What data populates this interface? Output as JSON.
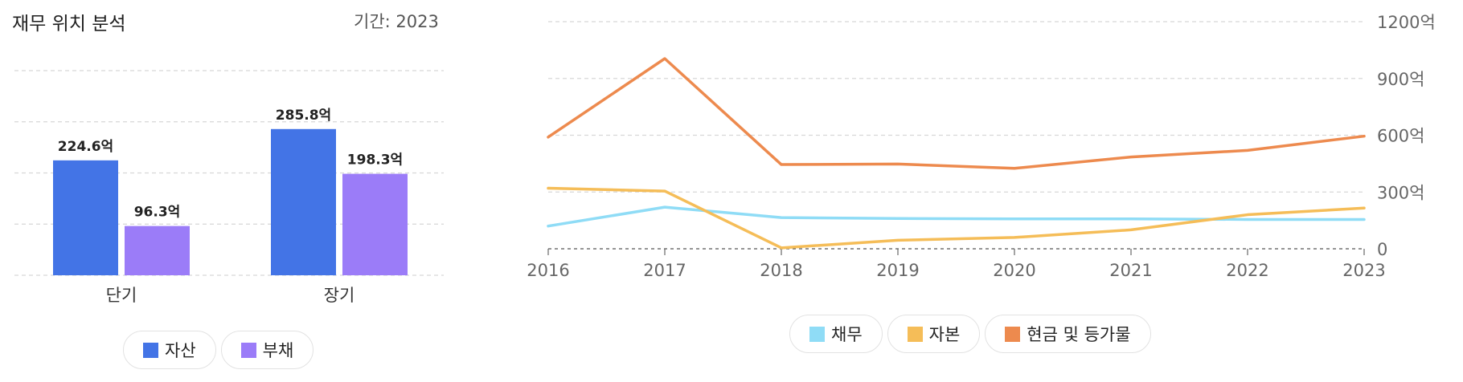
{
  "left_panel": {
    "title": "재무 위치 분석",
    "period_label": "기간: 2023"
  },
  "chart_data": [
    {
      "type": "bar",
      "categories": [
        "단기",
        "장기"
      ],
      "series": [
        {
          "name": "자산",
          "color": "#4374e6",
          "values": [
            224.6,
            285.8
          ],
          "labels": [
            "224.6억",
            "285.8억"
          ]
        },
        {
          "name": "부채",
          "color": "#9b7cf8",
          "values": [
            96.3,
            198.3
          ],
          "labels": [
            "96.3억",
            "198.3억"
          ]
        }
      ],
      "ylim": [
        0,
        400
      ],
      "grid": true,
      "legend_position": "bottom"
    },
    {
      "type": "line",
      "x": [
        "2016",
        "2017",
        "2018",
        "2019",
        "2020",
        "2021",
        "2022",
        "2023"
      ],
      "series": [
        {
          "name": "채무",
          "color": "#8fdcf6",
          "values": [
            120,
            220,
            165,
            160,
            158,
            158,
            155,
            155
          ]
        },
        {
          "name": "자본",
          "color": "#f5bd58",
          "values": [
            320,
            305,
            5,
            45,
            60,
            100,
            180,
            215
          ]
        },
        {
          "name": "현금 및 등가물",
          "color": "#ed8a4e",
          "values": [
            590,
            1005,
            445,
            448,
            425,
            485,
            520,
            595
          ]
        }
      ],
      "y_ticks": [
        "0",
        "300억",
        "600억",
        "900억",
        "1200억"
      ],
      "ylim": [
        0,
        1200
      ],
      "grid": true,
      "y_axis_side": "right",
      "legend_position": "bottom"
    }
  ]
}
